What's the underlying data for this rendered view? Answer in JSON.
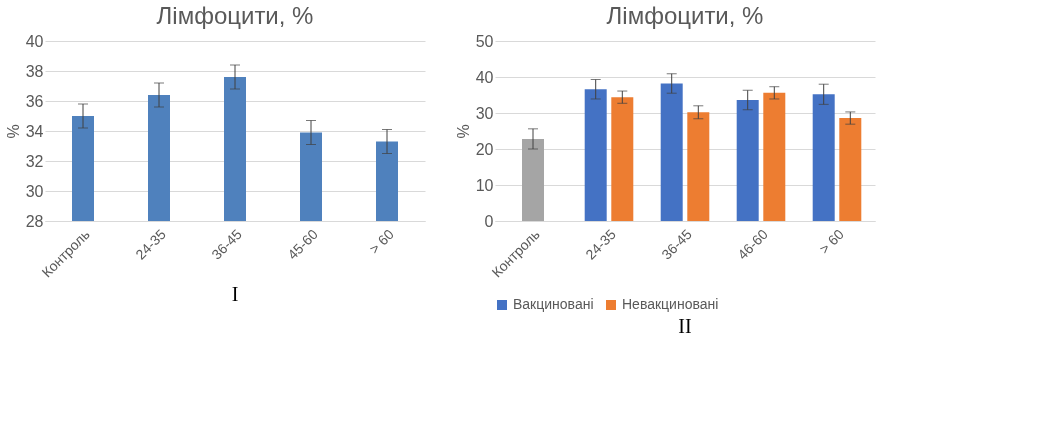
{
  "chart_data": [
    {
      "type": "bar",
      "title": "Лімфоцити, %",
      "ylabel": "%",
      "categories": [
        "Контроль",
        "24-35",
        "36-45",
        "45-60",
        "> 60"
      ],
      "series": [
        {
          "color": "#4f81bd",
          "values": [
            35.0,
            36.4,
            37.6,
            33.9,
            33.3
          ],
          "errors": [
            0.8,
            0.8,
            0.8,
            0.8,
            0.8
          ]
        }
      ],
      "ylim": [
        28,
        40
      ],
      "yticks": [
        28,
        30,
        32,
        34,
        36,
        38,
        40
      ],
      "grid": "y",
      "annotations": [
        "I"
      ]
    },
    {
      "type": "bar",
      "title": "Лімфоцити, %",
      "ylabel": "%",
      "categories": [
        "Контроль",
        "24-35",
        "36-45",
        "46-60",
        "> 60"
      ],
      "series": [
        {
          "color": "#a5a5a5",
          "values": [
            22.8,
            null,
            null,
            null,
            null
          ],
          "errors": [
            2.8,
            null,
            null,
            null,
            null
          ]
        },
        {
          "name": "Вакциновані",
          "color": "#4472c4",
          "values": [
            null,
            36.6,
            38.2,
            33.6,
            35.2
          ],
          "errors": [
            null,
            2.7,
            2.7,
            2.7,
            2.8
          ]
        },
        {
          "name": "Невакциновані",
          "color": "#ed7d31",
          "values": [
            null,
            34.4,
            30.2,
            35.6,
            28.6
          ],
          "errors": [
            null,
            1.7,
            1.8,
            1.7,
            1.7
          ]
        }
      ],
      "ylim": [
        0,
        50
      ],
      "yticks": [
        0,
        10,
        20,
        30,
        40,
        50
      ],
      "grid": "y",
      "legend": "bottom",
      "annotations": [
        "II"
      ]
    }
  ]
}
